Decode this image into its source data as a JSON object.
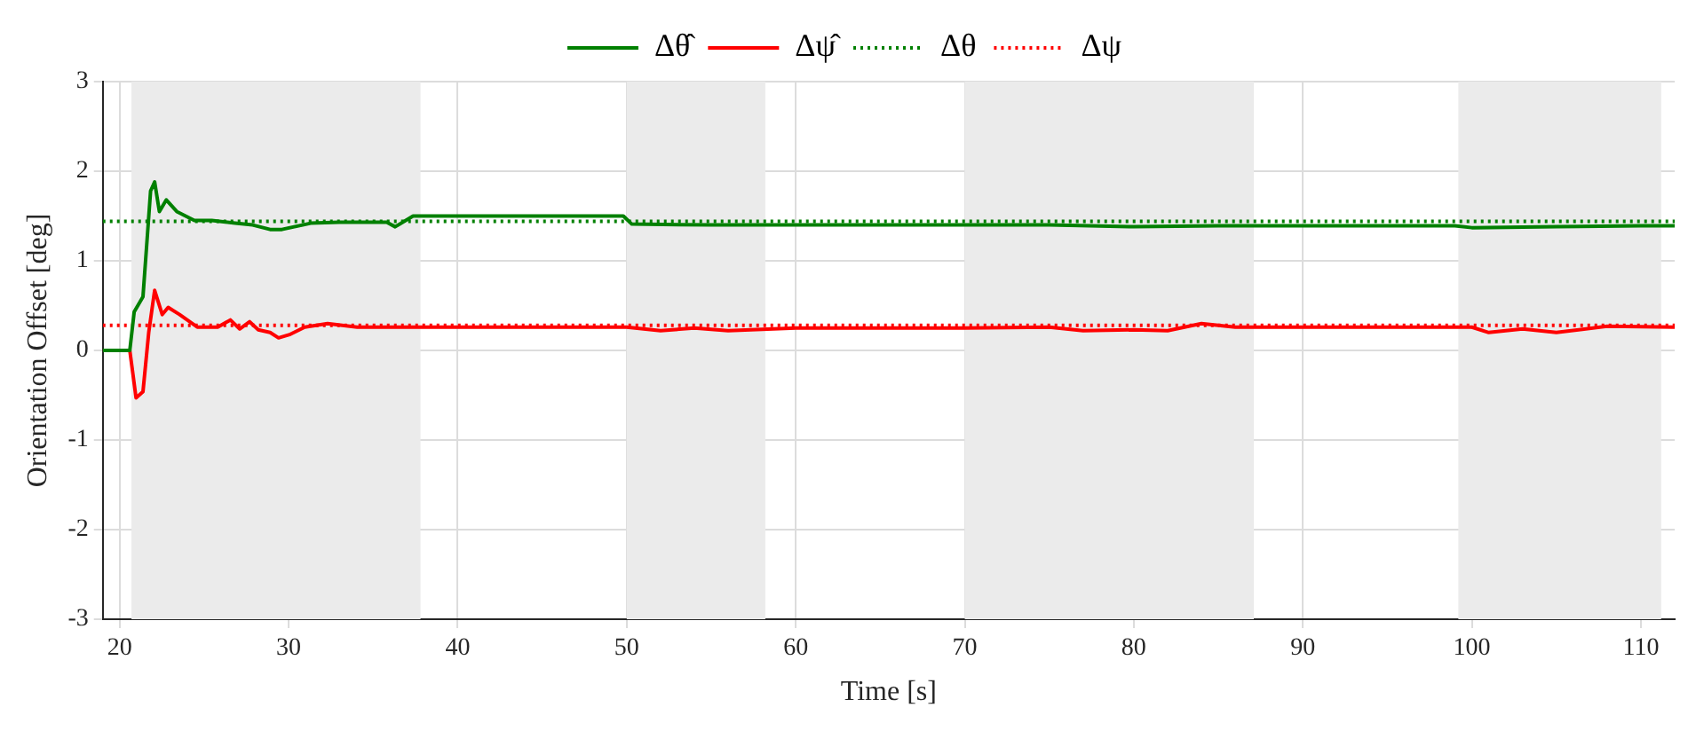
{
  "chart_data": {
    "type": "line",
    "xlabel": "Time [s]",
    "ylabel": "Orientation Offset [deg]",
    "xlim": [
      19,
      112
    ],
    "ylim": [
      -3,
      3
    ],
    "xticks": [
      20,
      30,
      40,
      50,
      60,
      70,
      80,
      90,
      100,
      110
    ],
    "yticks": [
      -3,
      -2,
      -1,
      0,
      1,
      2,
      3
    ],
    "grid": true,
    "legend": "top",
    "marker": "none",
    "bands": [
      {
        "axis": "x",
        "from": 20.7,
        "to": 37.8,
        "color": "#ebebeb"
      },
      {
        "axis": "x",
        "from": 50,
        "to": 58.2,
        "color": "#ebebeb"
      },
      {
        "axis": "x",
        "from": 70,
        "to": 87.1,
        "color": "#ebebeb"
      },
      {
        "axis": "x",
        "from": 99.2,
        "to": 111.2,
        "color": "#ebebeb"
      }
    ],
    "series": [
      {
        "name": "Δθ̂",
        "color": "#008000",
        "line_style": "solid",
        "x": [
          19,
          20.6,
          20.86,
          21.38,
          21.83,
          22.07,
          22.35,
          22.76,
          23.38,
          24.42,
          25.45,
          26.83,
          27.87,
          28.9,
          29.6,
          31.3,
          33,
          35.8,
          36.3,
          37.36,
          40,
          45,
          49.8,
          50.3,
          55,
          60,
          70,
          75,
          80,
          85,
          90,
          95,
          99,
          100,
          105,
          110,
          112
        ],
        "values": [
          0,
          0,
          0.43,
          0.6,
          1.78,
          1.88,
          1.55,
          1.68,
          1.55,
          1.45,
          1.45,
          1.42,
          1.4,
          1.35,
          1.35,
          1.42,
          1.43,
          1.43,
          1.38,
          1.5,
          1.5,
          1.5,
          1.5,
          1.41,
          1.4,
          1.4,
          1.4,
          1.4,
          1.38,
          1.39,
          1.39,
          1.39,
          1.39,
          1.37,
          1.38,
          1.39,
          1.39
        ]
      },
      {
        "name": "Δψ̂",
        "color": "#ff0000",
        "line_style": "solid",
        "x": [
          19,
          20.6,
          20.97,
          21.38,
          21.72,
          22.07,
          22.52,
          22.87,
          23.55,
          24.59,
          25.8,
          26.55,
          27.1,
          27.69,
          28.2,
          28.9,
          29.4,
          30.1,
          30.95,
          32.3,
          34.05,
          40,
          50,
          52,
          54,
          56,
          60,
          70,
          75,
          77,
          80,
          82,
          84,
          86,
          90,
          100,
          101,
          103,
          105,
          108,
          112
        ],
        "values": [
          0,
          0,
          -0.53,
          -0.46,
          0.2,
          0.67,
          0.4,
          0.48,
          0.4,
          0.26,
          0.26,
          0.34,
          0.24,
          0.32,
          0.23,
          0.2,
          0.14,
          0.18,
          0.26,
          0.3,
          0.26,
          0.26,
          0.26,
          0.22,
          0.25,
          0.22,
          0.25,
          0.25,
          0.26,
          0.22,
          0.23,
          0.22,
          0.3,
          0.26,
          0.26,
          0.26,
          0.2,
          0.24,
          0.2,
          0.27,
          0.26
        ]
      },
      {
        "name": "Δθ",
        "color": "#008000",
        "line_style": "dotted",
        "x": [
          19,
          112
        ],
        "values": [
          1.44,
          1.44
        ]
      },
      {
        "name": "Δψ",
        "color": "#ff0000",
        "line_style": "dotted",
        "x": [
          19,
          112
        ],
        "values": [
          0.28,
          0.28
        ]
      }
    ]
  }
}
